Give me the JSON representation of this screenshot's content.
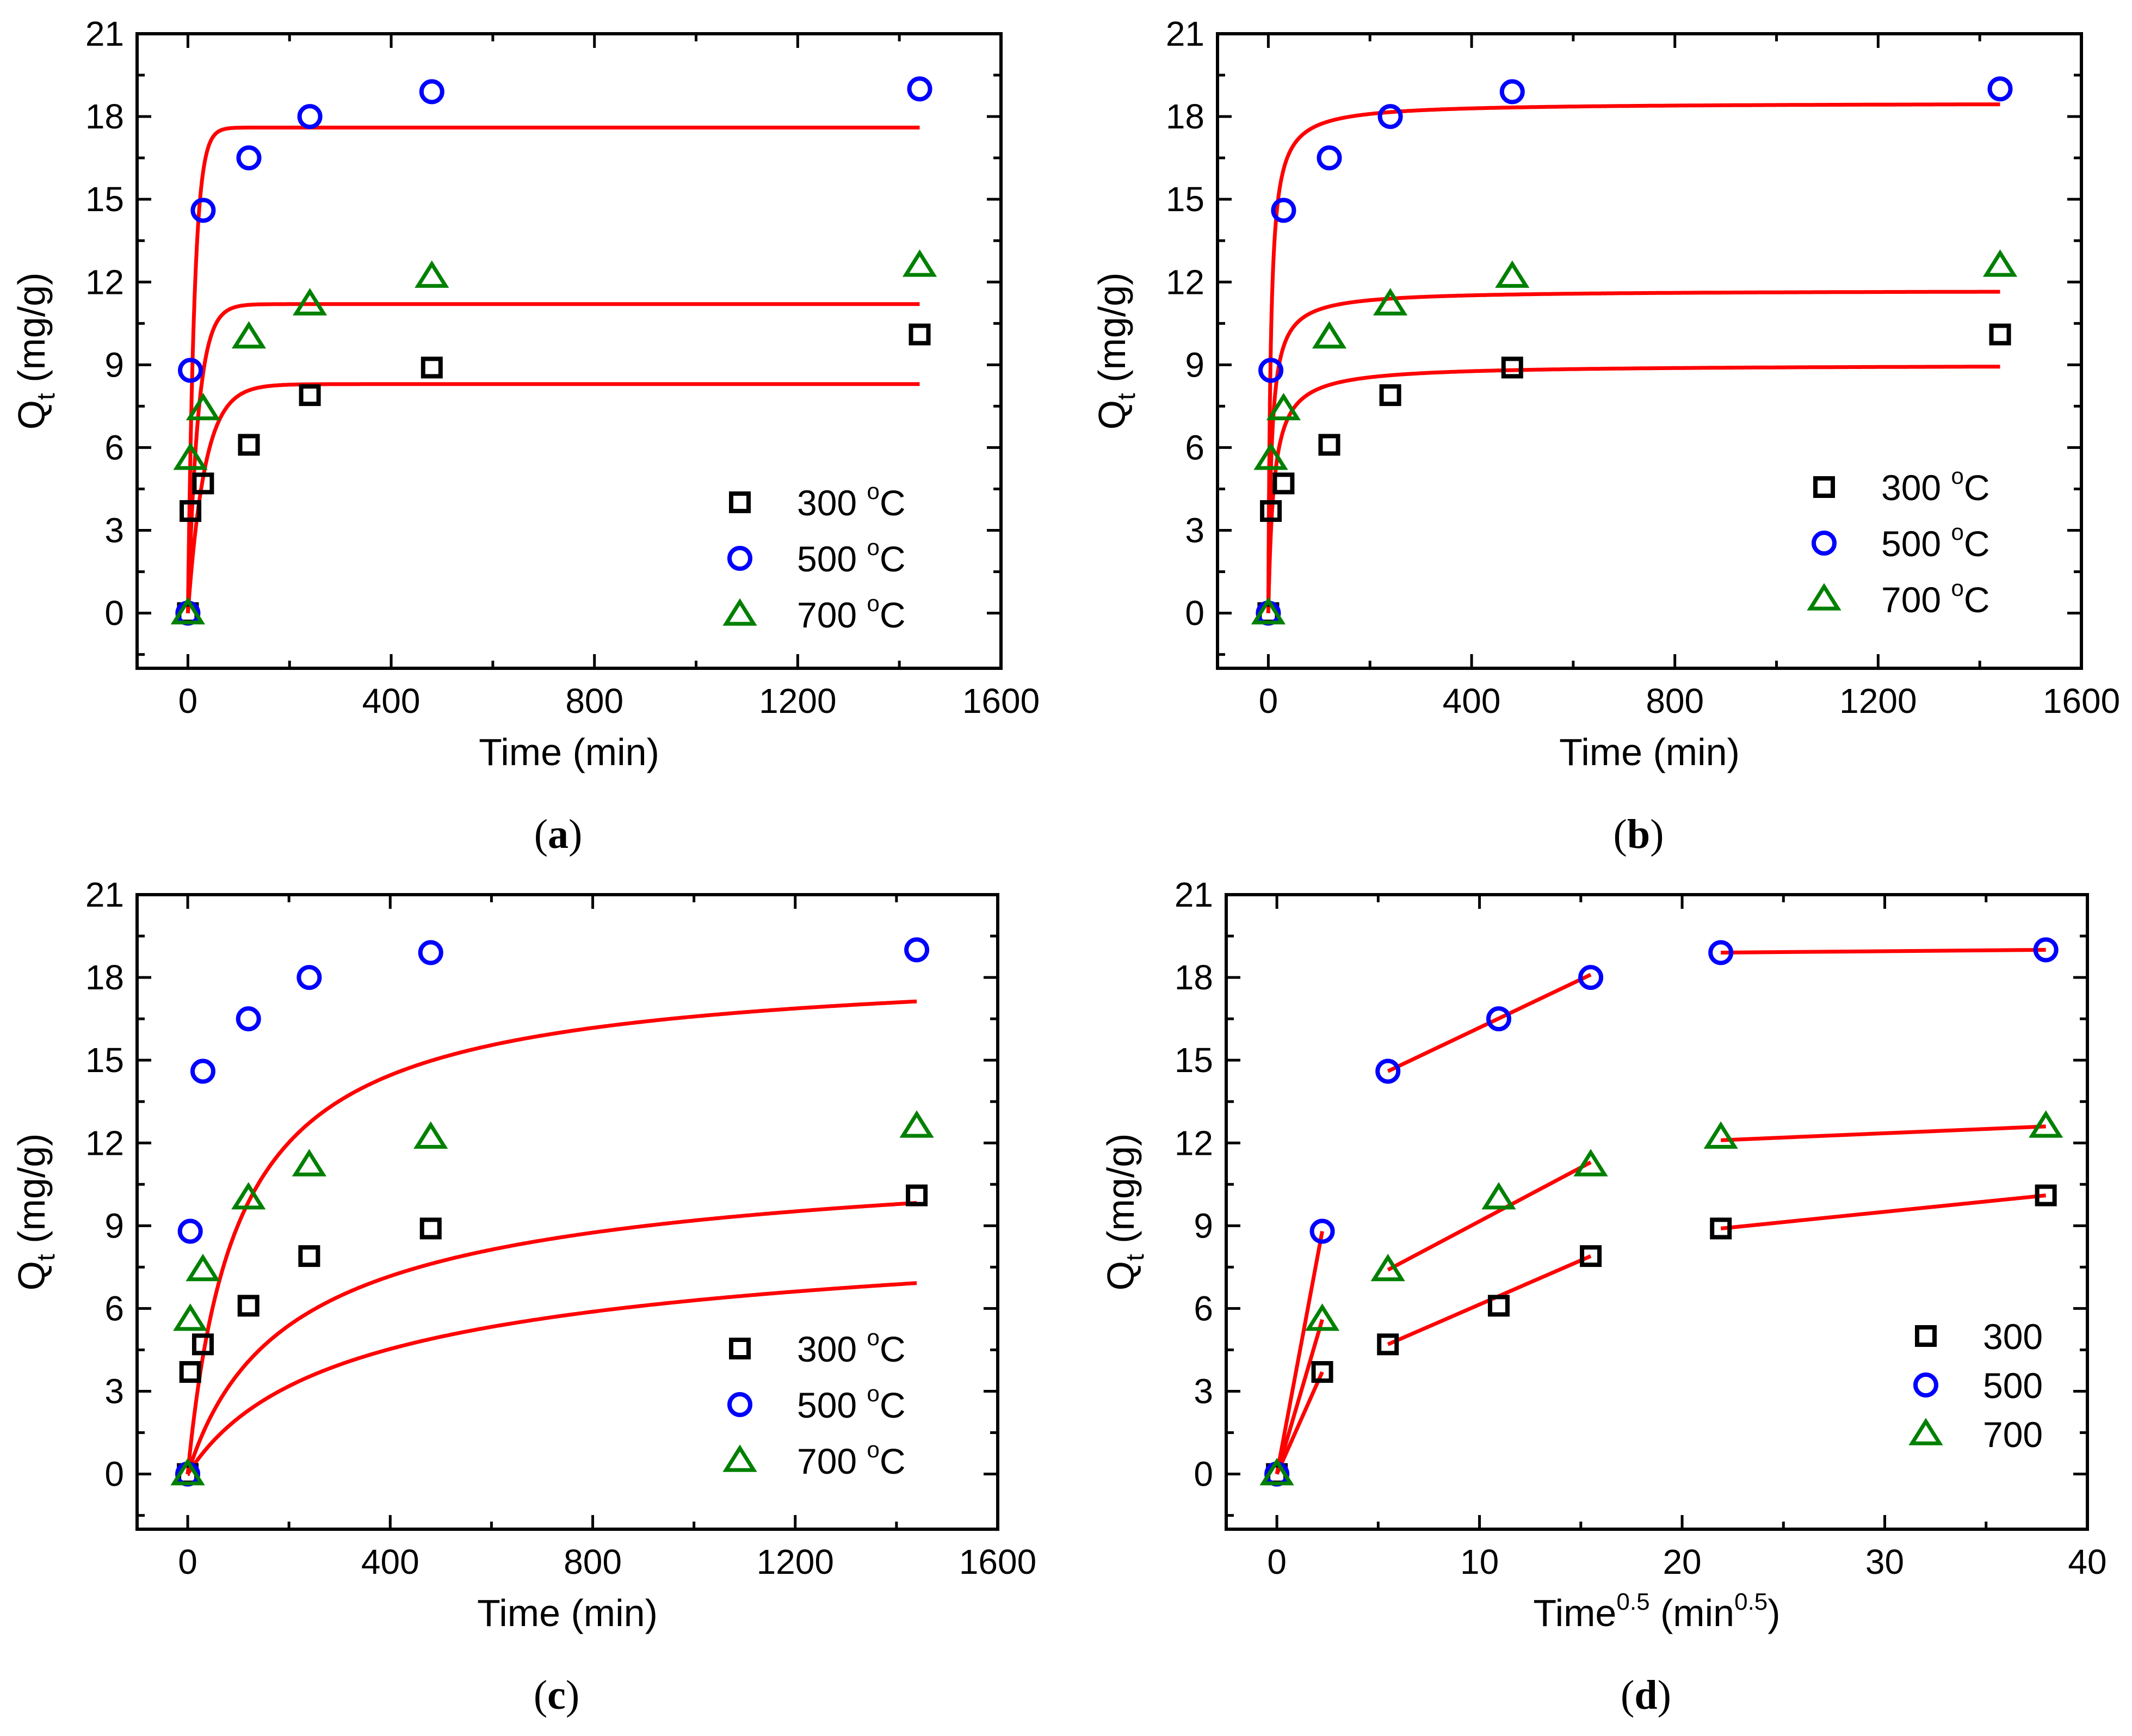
{
  "colors": {
    "s300": "#000000",
    "s500": "#0000ff",
    "s700": "#008000",
    "fit": "#ff0000"
  },
  "chart_data": [
    {
      "type": "scatter",
      "panel_label": "a",
      "xlabel": "Time (min)",
      "ylabel": "Qt (mg/g)",
      "ylabel_main": "Q",
      "ylabel_sub": "t",
      "ylabel_rest": " (mg/g)",
      "xlim": [
        -100,
        1600
      ],
      "ylim": [
        -2,
        21
      ],
      "xticks": [
        0,
        400,
        800,
        1200,
        1600
      ],
      "yticks": [
        0,
        3,
        6,
        9,
        12,
        15,
        18,
        21
      ],
      "legend": [
        {
          "key": "s300",
          "marker": "square",
          "text": "300",
          "unit": "C",
          "deg": "o"
        },
        {
          "key": "s500",
          "marker": "circle",
          "text": "500",
          "unit": "C",
          "deg": "o"
        },
        {
          "key": "s700",
          "marker": "triangle",
          "text": "700",
          "unit": "C",
          "deg": "o"
        }
      ],
      "series": [
        {
          "name": "300 °C",
          "marker": "square",
          "color_key": "s300",
          "x": [
            0,
            5,
            30,
            120,
            240,
            480,
            1440
          ],
          "y": [
            0.0,
            3.7,
            4.7,
            6.1,
            7.9,
            8.9,
            10.1
          ]
        },
        {
          "name": "500 °C",
          "marker": "circle",
          "color_key": "s500",
          "x": [
            0,
            5,
            30,
            120,
            240,
            480,
            1440
          ],
          "y": [
            0.0,
            8.8,
            14.6,
            16.5,
            18.0,
            18.9,
            19.0
          ]
        },
        {
          "name": "700 °C",
          "marker": "triangle",
          "color_key": "s700",
          "x": [
            0,
            5,
            30,
            120,
            240,
            480,
            1440
          ],
          "y": [
            0.0,
            5.6,
            7.4,
            10.0,
            11.2,
            12.2,
            12.6
          ]
        }
      ],
      "fit": {
        "model": "pseudo-first-order",
        "x_max": 1440,
        "params": [
          {
            "qe": 8.3,
            "k": 0.03
          },
          {
            "qe": 17.6,
            "k": 0.08
          },
          {
            "qe": 11.2,
            "k": 0.05
          }
        ]
      }
    },
    {
      "type": "scatter",
      "panel_label": "b",
      "xlabel": "Time (min)",
      "ylabel": "Qt (mg/g)",
      "ylabel_main": "Q",
      "ylabel_sub": "t",
      "ylabel_rest": " (mg/g)",
      "xlim": [
        -100,
        1600
      ],
      "ylim": [
        -2,
        21
      ],
      "xticks": [
        0,
        400,
        800,
        1200,
        1600
      ],
      "yticks": [
        0,
        3,
        6,
        9,
        12,
        15,
        18,
        21
      ],
      "legend": [
        {
          "key": "s300",
          "marker": "square",
          "text": "300",
          "unit": "C",
          "deg": "o"
        },
        {
          "key": "s500",
          "marker": "circle",
          "text": "500",
          "unit": "C",
          "deg": "o"
        },
        {
          "key": "s700",
          "marker": "triangle",
          "text": "700",
          "unit": "C",
          "deg": "o"
        }
      ],
      "series": [
        {
          "name": "300 °C",
          "marker": "square",
          "color_key": "s300",
          "x": [
            0,
            5,
            30,
            120,
            240,
            480,
            1440
          ],
          "y": [
            0.0,
            3.7,
            4.7,
            6.1,
            7.9,
            8.9,
            10.1
          ]
        },
        {
          "name": "500 °C",
          "marker": "circle",
          "color_key": "s500",
          "x": [
            0,
            5,
            30,
            120,
            240,
            480,
            1440
          ],
          "y": [
            0.0,
            8.8,
            14.6,
            16.5,
            18.0,
            18.9,
            19.0
          ]
        },
        {
          "name": "700 °C",
          "marker": "triangle",
          "color_key": "s700",
          "x": [
            0,
            5,
            30,
            120,
            240,
            480,
            1440
          ],
          "y": [
            0.0,
            5.6,
            7.4,
            10.0,
            11.2,
            12.2,
            12.6
          ]
        }
      ],
      "fit": {
        "model": "pseudo-second-order",
        "x_max": 1440,
        "params": [
          {
            "qe": 9.0,
            "k": 0.0105
          },
          {
            "qe": 18.5,
            "k": 0.012
          },
          {
            "qe": 11.7,
            "k": 0.0135
          }
        ]
      }
    },
    {
      "type": "scatter",
      "panel_label": "c",
      "xlabel": "Time (min)",
      "ylabel": "Qt (mg/g)",
      "ylabel_main": "Q",
      "ylabel_sub": "t",
      "ylabel_rest": " (mg/g)",
      "xlim": [
        -100,
        1600
      ],
      "ylim": [
        -2,
        21
      ],
      "xticks": [
        0,
        400,
        800,
        1200,
        1600
      ],
      "yticks": [
        0,
        3,
        6,
        9,
        12,
        15,
        18,
        21
      ],
      "legend": [
        {
          "key": "s300",
          "marker": "square",
          "text": "300",
          "unit": "C",
          "deg": "o"
        },
        {
          "key": "s500",
          "marker": "circle",
          "text": "500",
          "unit": "C",
          "deg": "o"
        },
        {
          "key": "s700",
          "marker": "triangle",
          "text": "700",
          "unit": "C",
          "deg": "o"
        }
      ],
      "series": [
        {
          "name": "300 °C",
          "marker": "square",
          "color_key": "s300",
          "x": [
            0,
            5,
            30,
            120,
            240,
            480,
            1440
          ],
          "y": [
            0.0,
            3.7,
            4.7,
            6.1,
            7.9,
            8.9,
            10.1
          ]
        },
        {
          "name": "500 °C",
          "marker": "circle",
          "color_key": "s500",
          "x": [
            0,
            5,
            30,
            120,
            240,
            480,
            1440
          ],
          "y": [
            0.0,
            8.8,
            14.6,
            16.5,
            18.0,
            18.9,
            19.0
          ]
        },
        {
          "name": "700 °C",
          "marker": "triangle",
          "color_key": "s700",
          "x": [
            0,
            5,
            30,
            120,
            240,
            480,
            1440
          ],
          "y": [
            0.0,
            5.6,
            7.4,
            10.0,
            11.2,
            12.2,
            12.6
          ]
        }
      ],
      "fit": {
        "model": "general-order",
        "x_max": 1440,
        "params": [
          {
            "qe": 11.5,
            "k": 0.0025,
            "n": 3.5
          },
          {
            "qe": 18.8,
            "k": 0.01,
            "n": 2.2
          },
          {
            "qe": 13.0,
            "k": 0.0045,
            "n": 2.8
          }
        ]
      }
    },
    {
      "type": "scatter",
      "panel_label": "d",
      "xlabel": "Time0.5 (min0.5)",
      "xlabel_parts": [
        "Time",
        "0.5",
        " (min",
        "0.5",
        ")"
      ],
      "ylabel": "Qt (mg/g)",
      "ylabel_main": "Q",
      "ylabel_sub": "t",
      "ylabel_rest": " (mg/g)",
      "xlim": [
        -2.5,
        40
      ],
      "ylim": [
        -2,
        21
      ],
      "xticks": [
        0,
        10,
        20,
        30,
        40
      ],
      "yticks": [
        0,
        3,
        6,
        9,
        12,
        15,
        18,
        21
      ],
      "legend": [
        {
          "key": "s300",
          "marker": "square",
          "text": "300"
        },
        {
          "key": "s500",
          "marker": "circle",
          "text": "500"
        },
        {
          "key": "s700",
          "marker": "triangle",
          "text": "700"
        }
      ],
      "series": [
        {
          "name": "300",
          "marker": "square",
          "color_key": "s300",
          "x": [
            0,
            2.24,
            5.48,
            10.95,
            15.49,
            21.91,
            37.95
          ],
          "y": [
            0.0,
            3.7,
            4.7,
            6.1,
            7.9,
            8.9,
            10.1
          ]
        },
        {
          "name": "500",
          "marker": "circle",
          "color_key": "s500",
          "x": [
            0,
            2.24,
            5.48,
            10.95,
            15.49,
            21.91,
            37.95
          ],
          "y": [
            0.0,
            8.8,
            14.6,
            16.5,
            18.0,
            18.9,
            19.0
          ]
        },
        {
          "name": "700",
          "marker": "triangle",
          "color_key": "s700",
          "x": [
            0,
            2.24,
            5.48,
            10.95,
            15.49,
            21.91,
            37.95
          ],
          "y": [
            0.0,
            5.6,
            7.4,
            10.0,
            11.2,
            12.2,
            12.6
          ]
        }
      ],
      "fit": {
        "model": "intraparticle-diffusion",
        "segments": [
          {
            "x": [
              0,
              2.24
            ],
            "y": [
              0.0,
              3.7
            ]
          },
          {
            "x": [
              0,
              2.24
            ],
            "y": [
              0.0,
              8.8
            ]
          },
          {
            "x": [
              0,
              2.24
            ],
            "y": [
              0.0,
              5.6
            ]
          },
          {
            "x": [
              5.48,
              15.49
            ],
            "y": [
              4.7,
              7.9
            ]
          },
          {
            "x": [
              5.48,
              15.49
            ],
            "y": [
              14.6,
              18.1
            ]
          },
          {
            "x": [
              5.48,
              15.49
            ],
            "y": [
              7.4,
              11.3
            ]
          },
          {
            "x": [
              21.91,
              37.95
            ],
            "y": [
              8.9,
              10.1
            ]
          },
          {
            "x": [
              21.91,
              37.95
            ],
            "y": [
              18.9,
              19.0
            ]
          },
          {
            "x": [
              21.91,
              37.95
            ],
            "y": [
              12.1,
              12.6
            ]
          }
        ]
      }
    }
  ]
}
